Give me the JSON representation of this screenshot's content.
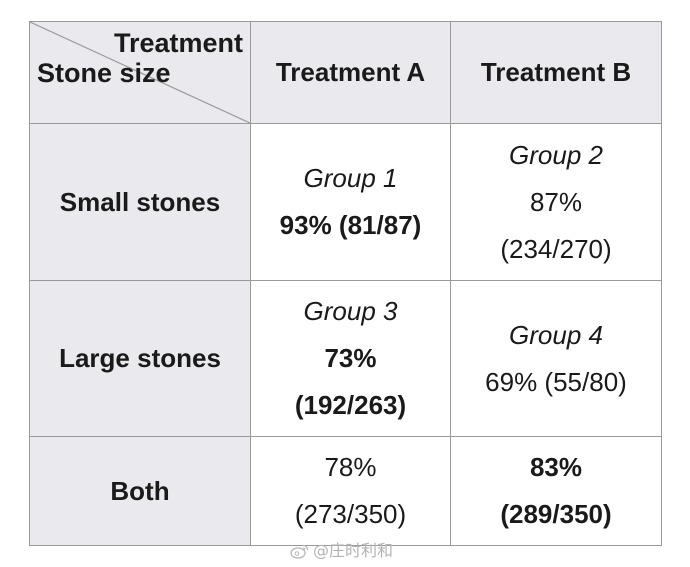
{
  "table": {
    "corner": {
      "column_header": "Treatment",
      "row_header": "Stone size"
    },
    "columns": [
      "Treatment A",
      "Treatment B"
    ],
    "rows": [
      {
        "label": "Small stones",
        "cells": [
          {
            "group": "Group 1",
            "value": "93% (81/87)"
          },
          {
            "group": "Group 2",
            "percent": "87%",
            "fraction": "(234/270)"
          }
        ]
      },
      {
        "label": "Large stones",
        "cells": [
          {
            "group": "Group 3",
            "percent": "73%",
            "fraction": "(192/263)"
          },
          {
            "group": "Group 4",
            "value": "69% (55/80)"
          }
        ]
      },
      {
        "label": "Both",
        "cells": [
          {
            "percent": "78%",
            "fraction": "(273/350)"
          },
          {
            "percent": "83%",
            "fraction": "(289/350)"
          }
        ]
      }
    ]
  },
  "watermark": {
    "text": "@庄时利和",
    "icon": "weibo-icon"
  }
}
